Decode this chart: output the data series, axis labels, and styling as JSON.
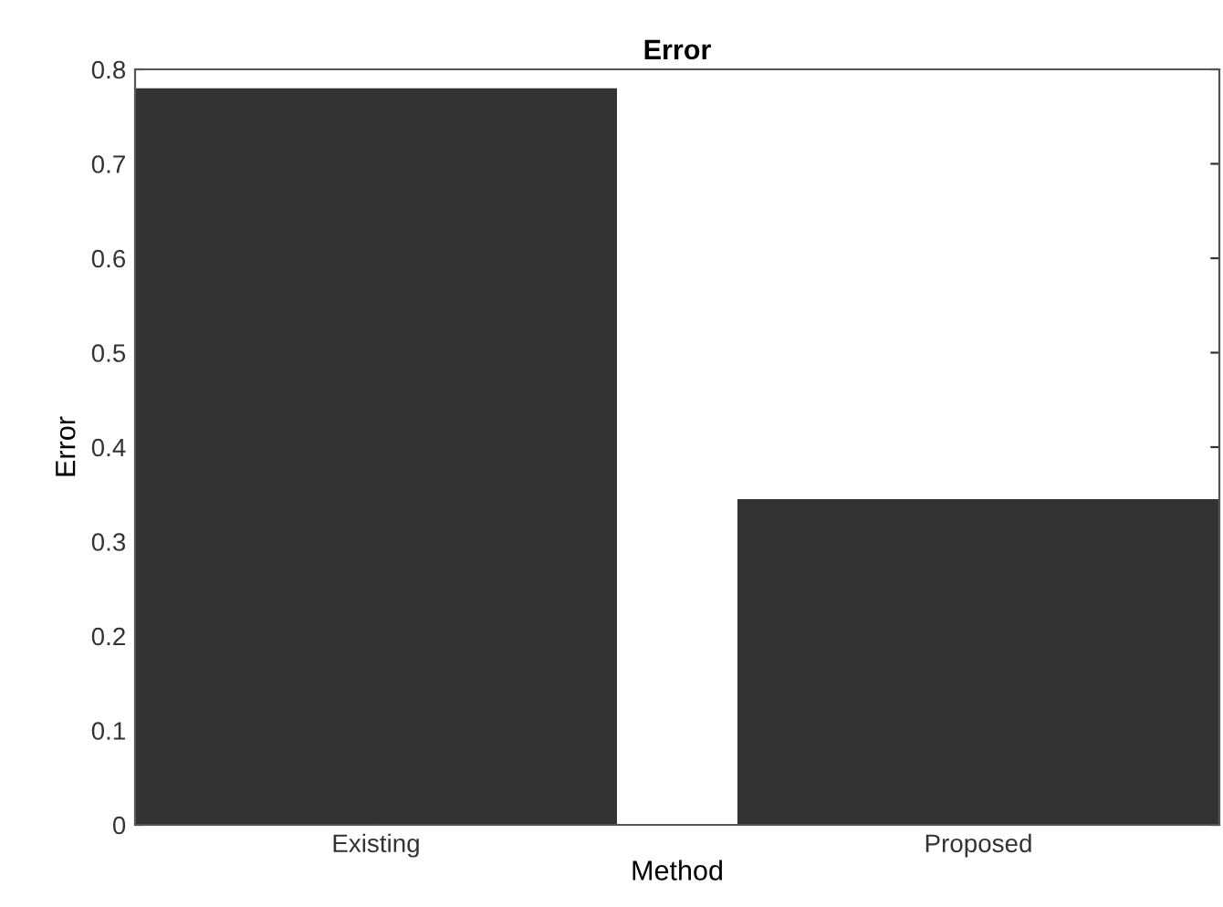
{
  "chart_data": {
    "type": "bar",
    "title": "Error",
    "xlabel": "Method",
    "ylabel": "Error",
    "categories": [
      "Existing",
      "Proposed"
    ],
    "values": [
      0.78,
      0.345
    ],
    "color": "#333333",
    "ylim": [
      0,
      0.8
    ],
    "yticks": [
      0,
      0.1,
      0.2,
      0.3,
      0.4,
      0.5,
      0.6,
      0.7,
      0.8
    ],
    "grid": false,
    "legend": false
  }
}
